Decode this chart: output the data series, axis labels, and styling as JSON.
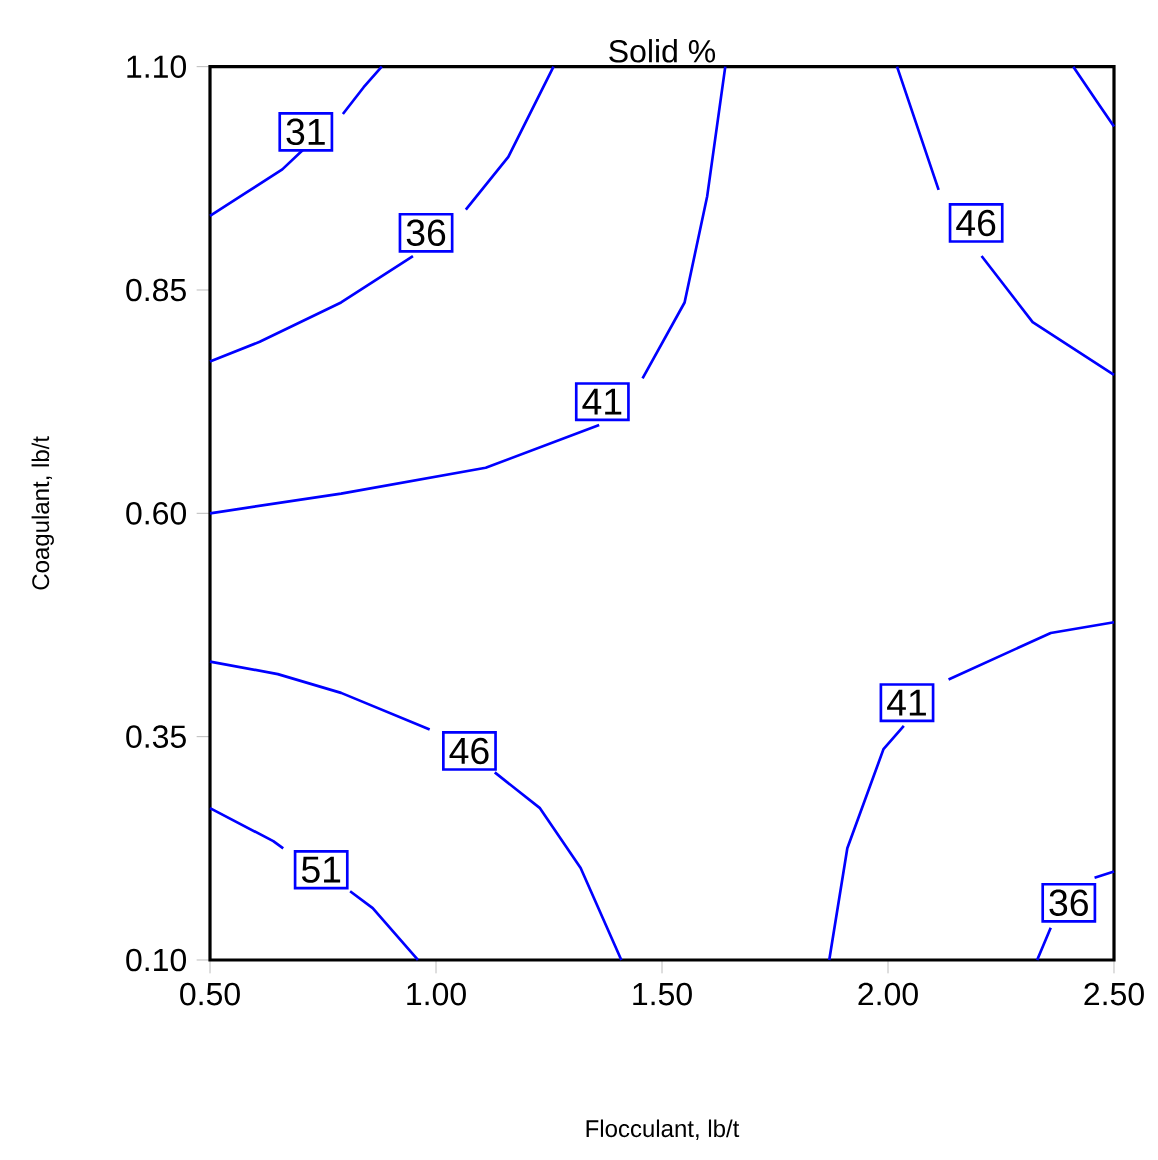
{
  "chart_data": {
    "type": "line",
    "title": "Solid %",
    "xlabel": "Flocculant, lb/t",
    "ylabel": "Coagulant, lb/t",
    "xlim": [
      0.5,
      2.5
    ],
    "ylim": [
      0.1,
      1.1
    ],
    "xticks": [
      {
        "value": 0.5,
        "label": "0.50"
      },
      {
        "value": 1.0,
        "label": "1.00"
      },
      {
        "value": 1.5,
        "label": "1.50"
      },
      {
        "value": 2.0,
        "label": "2.00"
      },
      {
        "value": 2.5,
        "label": "2.50"
      }
    ],
    "yticks": [
      {
        "value": 0.1,
        "label": "0.10"
      },
      {
        "value": 0.35,
        "label": "0.35"
      },
      {
        "value": 0.6,
        "label": "0.60"
      },
      {
        "value": 0.85,
        "label": "0.85"
      },
      {
        "value": 1.1,
        "label": "1.10"
      }
    ],
    "marker": "none",
    "line_style": "solid",
    "series": [
      {
        "name": "31",
        "color": "#0000ff",
        "x": [
          0.5,
          0.58,
          0.66,
          0.706,
          0.712,
          0.794,
          0.84,
          0.88
        ],
        "values": [
          0.933,
          0.959,
          0.985,
          1.007,
          null,
          1.047,
          1.077,
          1.1
        ]
      },
      {
        "name": "36",
        "color": "#0000ff",
        "x": [
          0.5,
          0.61,
          0.79,
          0.949,
          0.978,
          1.066,
          1.16,
          1.26
        ],
        "values": [
          0.77,
          0.792,
          0.836,
          0.888,
          null,
          0.94,
          0.999,
          1.1
        ]
      },
      {
        "name": "41",
        "color": "#0000ff",
        "x": [
          0.5,
          0.79,
          1.11,
          1.361,
          1.368,
          1.457,
          1.55,
          1.6,
          1.64
        ],
        "values": [
          0.6,
          0.622,
          0.651,
          0.699,
          null,
          0.751,
          0.836,
          0.955,
          1.1
        ]
      },
      {
        "name": "46",
        "color": "#0000ff",
        "x": [
          2.02,
          2.112,
          2.195,
          2.207,
          2.32,
          2.5
        ],
        "values": [
          1.1,
          0.962,
          null,
          0.888,
          0.814,
          0.755
        ]
      },
      {
        "color": "#0000ff",
        "x": [
          2.41,
          2.47,
          2.5
        ],
        "values": [
          1.1,
          1.055,
          1.033
        ]
      },
      {
        "name": "46",
        "color": "#0000ff",
        "x": [
          0.5,
          0.65,
          0.79,
          0.986,
          1.074,
          1.13,
          1.23,
          1.32,
          1.41
        ],
        "values": [
          0.434,
          0.42,
          0.399,
          0.358,
          null,
          0.31,
          0.27,
          0.203,
          0.1
        ]
      },
      {
        "name": "51",
        "color": "#0000ff",
        "x": [
          0.5,
          0.64,
          0.662,
          0.746,
          0.81,
          0.86,
          0.96
        ],
        "values": [
          0.27,
          0.233,
          0.225,
          null,
          0.177,
          0.158,
          0.1
        ]
      },
      {
        "name": "41",
        "color": "#0000ff",
        "x": [
          1.87,
          1.91,
          1.99,
          2.035,
          2.042,
          2.134,
          2.36,
          2.5
        ],
        "values": [
          0.1,
          0.225,
          0.336,
          0.362,
          null,
          0.414,
          0.466,
          0.478
        ]
      },
      {
        "name": "36",
        "color": "#0000ff",
        "x": [
          2.33,
          2.36,
          2.4,
          2.457,
          2.5
        ],
        "values": [
          0.1,
          0.136,
          null,
          0.192,
          0.199
        ]
      }
    ]
  }
}
